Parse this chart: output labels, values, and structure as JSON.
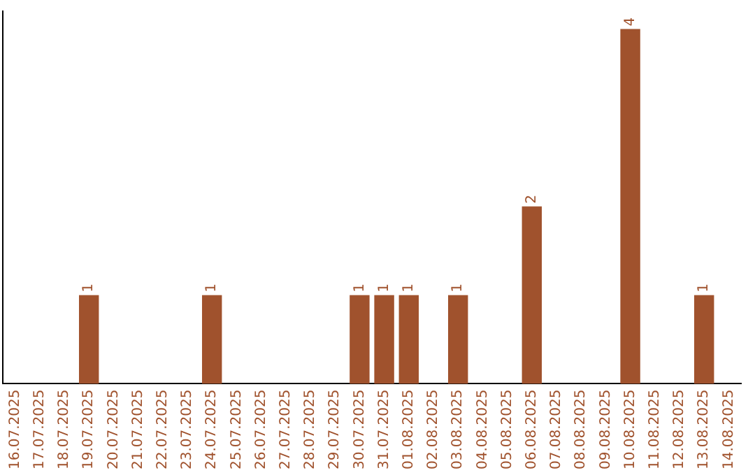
{
  "chart_data": {
    "type": "bar",
    "categories": [
      "16.07.2025",
      "17.07.2025",
      "18.07.2025",
      "19.07.2025",
      "20.07.2025",
      "21.07.2025",
      "22.07.2025",
      "23.07.2025",
      "24.07.2025",
      "25.07.2025",
      "26.07.2025",
      "27.07.2025",
      "28.07.2025",
      "29.07.2025",
      "30.07.2025",
      "31.07.2025",
      "01.08.2025",
      "02.08.2025",
      "03.08.2025",
      "04.08.2025",
      "05.08.2025",
      "06.08.2025",
      "07.08.2025",
      "08.08.2025",
      "09.08.2025",
      "10.08.2025",
      "11.08.2025",
      "12.08.2025",
      "13.08.2025",
      "14.08.2025"
    ],
    "values": [
      null,
      null,
      null,
      1,
      null,
      null,
      null,
      null,
      1,
      null,
      null,
      null,
      null,
      null,
      1,
      1,
      1,
      null,
      1,
      null,
      null,
      2,
      null,
      null,
      null,
      4,
      null,
      null,
      1,
      null
    ],
    "color": "#a0522d",
    "ylim": [
      0,
      4.2
    ],
    "data_labels": true,
    "grid": false,
    "legend": false,
    "tick_labels": "x"
  }
}
